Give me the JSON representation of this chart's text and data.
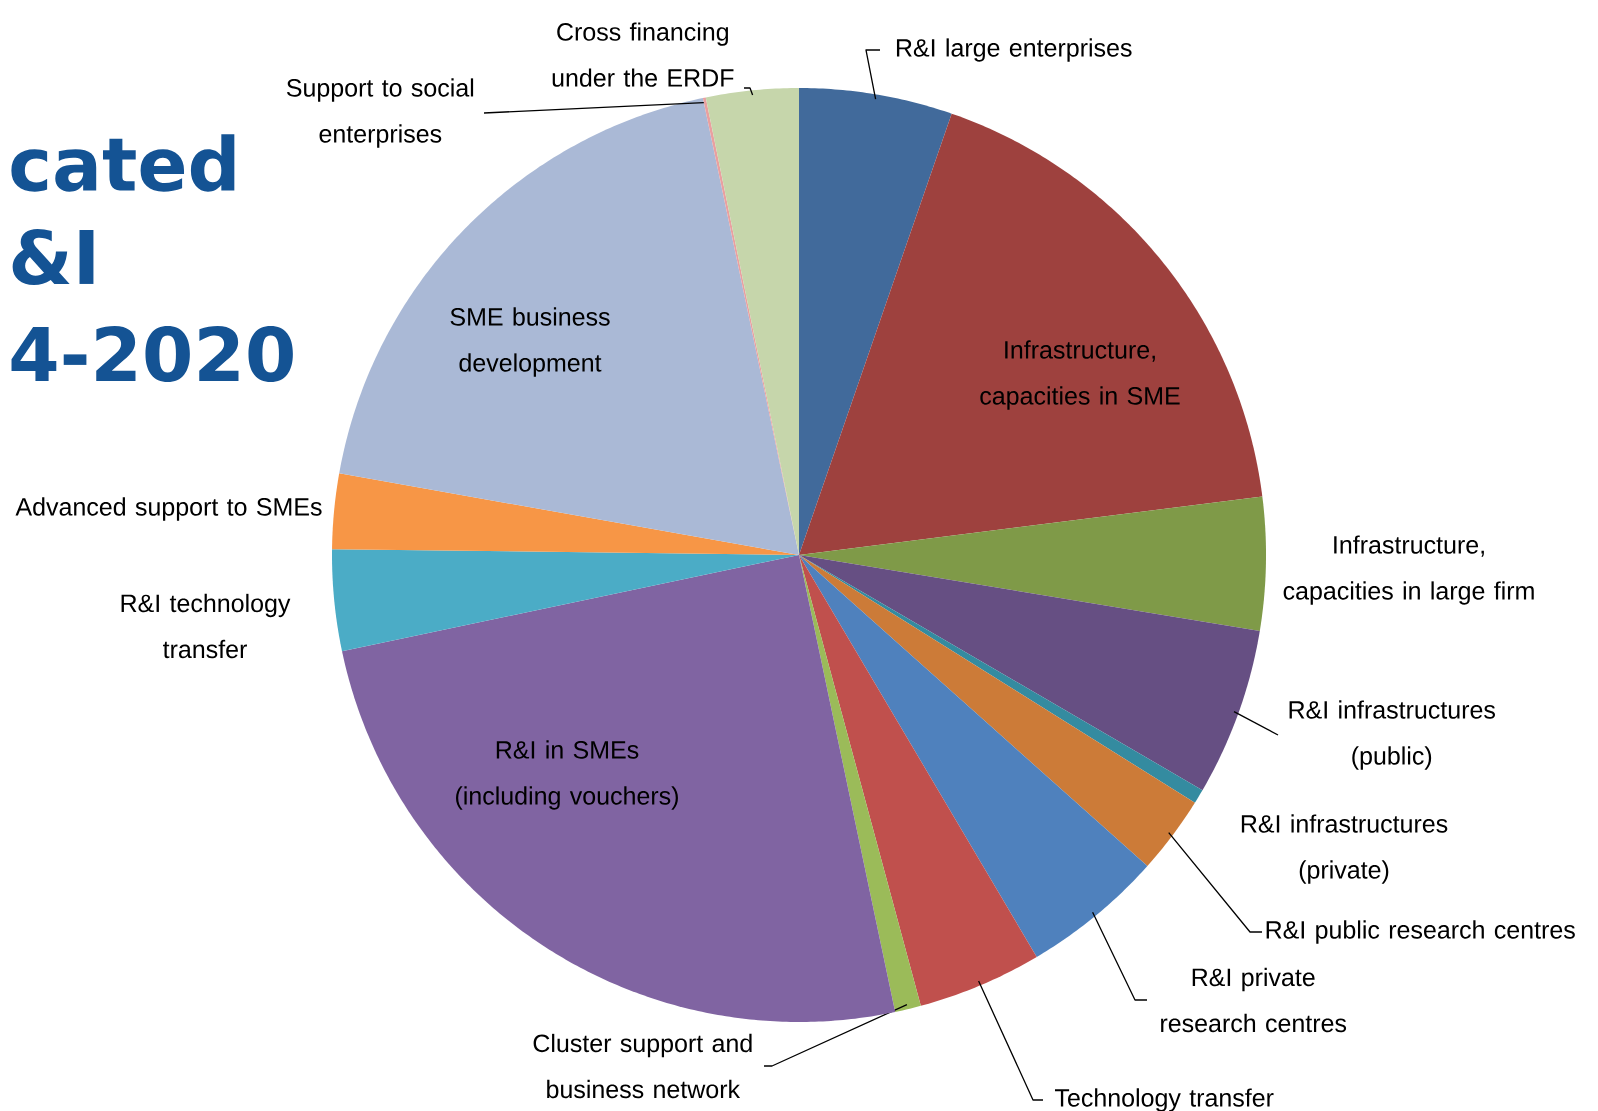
{
  "chart_data": {
    "type": "pie",
    "categories": [
      "R&I large enterprises",
      "Infrastructure, capacities in SME",
      "Infrastructure, capacities in large firm",
      "R&I infrastructures (public)",
      "R&I infrastructures (private)",
      "R&I public research centres",
      "R&I private research centres",
      "Technology transfer",
      "Cluster support and business network",
      "R&I in SMEs (including vouchers)",
      "R&I technology transfer",
      "Advanced support to SMEs",
      "SME business development",
      "Support to social enterprises",
      "Cross financing under the ERDF"
    ],
    "values": [
      5.3,
      17.7,
      4.6,
      5.8,
      0.5,
      2.7,
      4.9,
      4.3,
      0.9,
      25.0,
      3.5,
      2.6,
      18.9,
      0.1,
      3.2
    ],
    "colors": [
      "#416a9b",
      "#9e413e",
      "#7f9a48",
      "#664f83",
      "#348ba0",
      "#cc7b38",
      "#4f81bd",
      "#c0504d",
      "#9bbb59",
      "#8064a2",
      "#4bacc6",
      "#f79646",
      "#aab9d6",
      "#e9a0a0",
      "#c6d6ab"
    ],
    "annotations": [
      "cated",
      "&I",
      "4-2020"
    ]
  }
}
